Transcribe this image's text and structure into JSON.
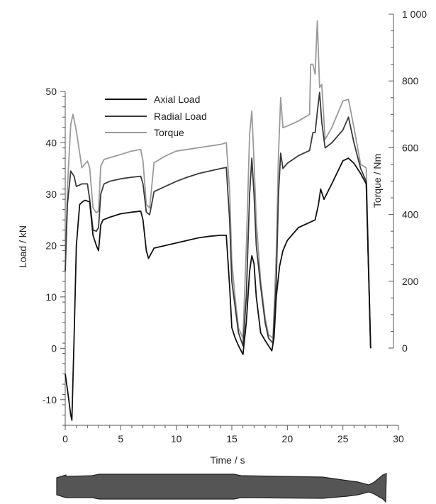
{
  "chart_data": {
    "type": "line",
    "title": "",
    "xlabel": "Time / s",
    "ylabel": "Load / kN",
    "y2label": "Torque / Nm",
    "xlim": [
      0,
      30
    ],
    "ylim": [
      -15,
      50
    ],
    "y2lim": [
      0,
      1000
    ],
    "x_ticks": [
      "0",
      "5",
      "10",
      "15",
      "20",
      "25",
      "30"
    ],
    "y_ticks": [
      "-10",
      "0",
      "10",
      "20",
      "30",
      "40",
      "50"
    ],
    "y2_ticks": [
      "0",
      "200",
      "400",
      "600",
      "800",
      "1 000"
    ],
    "grid": false,
    "legend_position": "top-left",
    "colors": {
      "axial": "#111111",
      "radial": "#3a3a3a",
      "torque": "#9a9a9a",
      "axis": "#555555",
      "workpiece": "#555555"
    },
    "series": [
      {
        "name": "Axial Load",
        "axis": "left",
        "x": [
          0,
          0.2,
          0.5,
          0.6,
          0.8,
          1.0,
          1.3,
          1.6,
          1.8,
          2.2,
          2.5,
          2.8,
          3.0,
          3.2,
          3.4,
          4,
          5,
          6,
          6.8,
          7.0,
          7.3,
          7.5,
          8,
          9,
          10,
          11,
          12,
          13,
          14,
          14.5,
          14.8,
          15.0,
          15.3,
          15.6,
          16.0,
          16.3,
          16.6,
          16.8,
          17.0,
          17.2,
          17.6,
          18.0,
          18.3,
          18.6,
          18.8,
          19.0,
          19.3,
          19.6,
          20.0,
          21.0,
          22.0,
          22.5,
          22.8,
          23.0,
          23.3,
          24.0,
          25.0,
          25.5,
          26.0,
          26.6,
          27.1,
          27.5
        ],
        "y": [
          -5,
          -8,
          -13,
          -14,
          2,
          20,
          28,
          28.6,
          28.8,
          28.5,
          22,
          20,
          19,
          24,
          25,
          25.5,
          26.2,
          26.5,
          26.7,
          25,
          19,
          17.5,
          19.5,
          20,
          20.5,
          21,
          21.5,
          21.8,
          22,
          22,
          12,
          4,
          2,
          0.5,
          -1.2,
          5,
          15,
          18,
          16.5,
          10,
          3,
          1.5,
          0.5,
          -0.5,
          2,
          10,
          16,
          19,
          21,
          23.5,
          24.5,
          25,
          28,
          31,
          29,
          32,
          36.5,
          37,
          36,
          34,
          32,
          0
        ]
      },
      {
        "name": "Radial Load",
        "axis": "left",
        "x": [
          0,
          0.2,
          0.5,
          0.8,
          1.0,
          1.5,
          2.0,
          2.2,
          2.5,
          2.8,
          3.0,
          3.2,
          3.5,
          4.0,
          5,
          6,
          6.8,
          7.0,
          7.3,
          7.6,
          8.0,
          9,
          10,
          11,
          12,
          13,
          14,
          14.5,
          14.8,
          15.0,
          15.3,
          15.6,
          16.0,
          16.3,
          16.6,
          16.8,
          17.0,
          17.2,
          17.6,
          18.0,
          18.3,
          18.7,
          19.0,
          19.2,
          19.4,
          19.6,
          20,
          21,
          22,
          22.3,
          22.5,
          22.7,
          22.9,
          23.1,
          23.4,
          24,
          25,
          25.5,
          26,
          26.6,
          27.1,
          27.5
        ],
        "y": [
          15,
          28,
          34.5,
          33.5,
          31.5,
          32,
          32,
          29,
          23,
          22.8,
          23.5,
          30,
          32,
          32.5,
          33,
          33.3,
          33.5,
          32,
          26.5,
          26,
          30.5,
          31.5,
          32.5,
          33.3,
          34,
          34.5,
          35,
          35.2,
          25,
          13,
          8,
          3,
          0.5,
          10,
          30,
          37,
          30,
          20,
          12,
          5,
          2,
          1,
          13,
          30,
          38,
          35,
          36,
          37.5,
          38.5,
          42,
          42,
          46,
          49.8,
          44,
          39,
          40,
          42.5,
          45,
          40,
          35,
          32.5,
          0
        ]
      },
      {
        "name": "Torque",
        "axis": "right",
        "x": [
          0,
          0.2,
          0.5,
          0.7,
          1.0,
          1.5,
          2.0,
          2.2,
          2.5,
          2.8,
          3.0,
          3.2,
          3.5,
          4,
          5,
          6,
          6.8,
          7.0,
          7.3,
          7.6,
          8,
          9,
          10,
          11,
          12,
          13,
          14,
          14.5,
          14.8,
          15.0,
          15.3,
          15.6,
          16.0,
          16.3,
          16.6,
          16.8,
          17.0,
          17.2,
          17.6,
          18.0,
          18.3,
          18.7,
          19.0,
          19.2,
          19.4,
          19.6,
          20,
          21,
          22,
          22.1,
          22.3,
          22.5,
          22.7,
          22.9,
          23.1,
          23.4,
          24,
          25,
          25.5,
          26,
          26.6,
          27.1,
          27.5
        ],
        "y": [
          230,
          480,
          670,
          700,
          650,
          540,
          560,
          540,
          420,
          405,
          410,
          545,
          565,
          570,
          580,
          590,
          595,
          560,
          430,
          420,
          555,
          575,
          590,
          595,
          600,
          605,
          610,
          615,
          470,
          260,
          150,
          60,
          30,
          300,
          640,
          710,
          560,
          380,
          200,
          90,
          40,
          30,
          280,
          580,
          750,
          660,
          665,
          680,
          700,
          850,
          850,
          820,
          980,
          780,
          790,
          625,
          660,
          740,
          745,
          660,
          550,
          540,
          0
        ]
      }
    ]
  }
}
